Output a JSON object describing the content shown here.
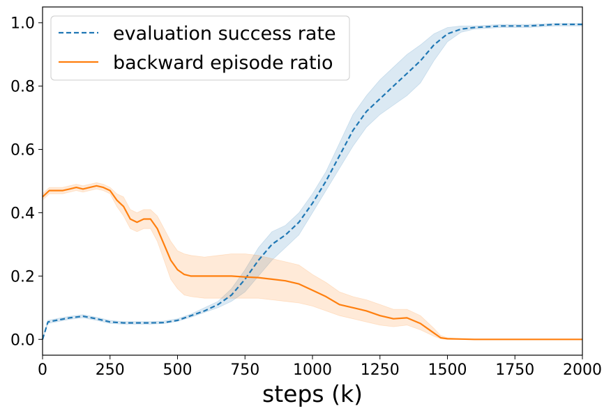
{
  "chart_data": {
    "type": "line",
    "title": "",
    "xlabel": "steps (k)",
    "ylabel": "",
    "xlim": [
      0,
      2000
    ],
    "ylim": [
      -0.05,
      1.05
    ],
    "xticks": [
      0,
      250,
      500,
      750,
      1000,
      1250,
      1500,
      1750,
      2000
    ],
    "xtick_labels": [
      "0",
      "250",
      "500",
      "750",
      "1000",
      "1250",
      "1500",
      "1750",
      "2000"
    ],
    "yticks": [
      0.0,
      0.2,
      0.4,
      0.6,
      0.8,
      1.0
    ],
    "ytick_labels": [
      "0.0",
      "0.2",
      "0.4",
      "0.6",
      "0.8",
      "1.0"
    ],
    "grid": false,
    "legend_position": "top-left",
    "series": [
      {
        "name": "evaluation success rate",
        "color": "#1f77b4",
        "style": "dashed",
        "x": [
          0,
          20,
          50,
          100,
          150,
          200,
          250,
          300,
          350,
          400,
          450,
          500,
          550,
          600,
          650,
          700,
          750,
          800,
          850,
          900,
          950,
          1000,
          1050,
          1100,
          1150,
          1200,
          1250,
          1300,
          1350,
          1400,
          1450,
          1500,
          1550,
          1600,
          1700,
          1800,
          1900,
          2000
        ],
        "y": [
          0.0,
          0.055,
          0.06,
          0.068,
          0.073,
          0.065,
          0.055,
          0.052,
          0.052,
          0.052,
          0.053,
          0.06,
          0.075,
          0.09,
          0.11,
          0.14,
          0.19,
          0.25,
          0.3,
          0.33,
          0.37,
          0.43,
          0.5,
          0.58,
          0.66,
          0.72,
          0.76,
          0.8,
          0.84,
          0.88,
          0.93,
          0.965,
          0.98,
          0.985,
          0.99,
          0.99,
          0.995,
          0.995
        ],
        "lower": [
          0.0,
          0.05,
          0.055,
          0.063,
          0.068,
          0.06,
          0.05,
          0.048,
          0.048,
          0.048,
          0.05,
          0.057,
          0.07,
          0.085,
          0.1,
          0.12,
          0.15,
          0.2,
          0.25,
          0.29,
          0.33,
          0.4,
          0.47,
          0.54,
          0.61,
          0.67,
          0.71,
          0.74,
          0.77,
          0.81,
          0.88,
          0.94,
          0.97,
          0.98,
          0.985,
          0.985,
          0.99,
          0.99
        ],
        "upper": [
          0.0,
          0.06,
          0.065,
          0.073,
          0.078,
          0.07,
          0.06,
          0.056,
          0.056,
          0.056,
          0.058,
          0.065,
          0.08,
          0.1,
          0.12,
          0.16,
          0.22,
          0.29,
          0.34,
          0.36,
          0.4,
          0.46,
          0.53,
          0.62,
          0.71,
          0.77,
          0.82,
          0.86,
          0.9,
          0.93,
          0.965,
          0.985,
          0.99,
          0.99,
          0.995,
          0.995,
          0.998,
          0.998
        ]
      },
      {
        "name": "backward episode ratio",
        "color": "#ff7f0e",
        "style": "solid",
        "x": [
          0,
          25,
          50,
          75,
          100,
          125,
          150,
          175,
          200,
          225,
          250,
          275,
          300,
          325,
          350,
          375,
          400,
          425,
          450,
          475,
          500,
          525,
          550,
          600,
          650,
          700,
          750,
          800,
          850,
          900,
          950,
          1000,
          1050,
          1100,
          1150,
          1200,
          1250,
          1300,
          1350,
          1400,
          1450,
          1475,
          1500,
          1550,
          1600,
          1700,
          1800,
          1900,
          2000
        ],
        "y": [
          0.45,
          0.47,
          0.47,
          0.47,
          0.475,
          0.48,
          0.475,
          0.48,
          0.485,
          0.48,
          0.47,
          0.44,
          0.42,
          0.38,
          0.37,
          0.38,
          0.38,
          0.35,
          0.3,
          0.25,
          0.22,
          0.205,
          0.2,
          0.2,
          0.2,
          0.2,
          0.197,
          0.195,
          0.19,
          0.185,
          0.175,
          0.155,
          0.135,
          0.11,
          0.1,
          0.09,
          0.075,
          0.065,
          0.068,
          0.05,
          0.02,
          0.005,
          0.002,
          0.001,
          0.0,
          0.0,
          0.0,
          0.0,
          0.0
        ],
        "lower": [
          0.44,
          0.46,
          0.46,
          0.46,
          0.465,
          0.47,
          0.465,
          0.47,
          0.475,
          0.47,
          0.46,
          0.42,
          0.39,
          0.35,
          0.34,
          0.35,
          0.35,
          0.31,
          0.25,
          0.19,
          0.16,
          0.14,
          0.135,
          0.13,
          0.13,
          0.13,
          0.13,
          0.13,
          0.125,
          0.12,
          0.115,
          0.105,
          0.09,
          0.075,
          0.065,
          0.055,
          0.045,
          0.04,
          0.045,
          0.03,
          0.01,
          0.002,
          0.0,
          0.0,
          0.0,
          0.0,
          0.0,
          0.0,
          0.0
        ],
        "upper": [
          0.46,
          0.48,
          0.48,
          0.48,
          0.485,
          0.49,
          0.485,
          0.49,
          0.495,
          0.49,
          0.48,
          0.46,
          0.45,
          0.41,
          0.4,
          0.41,
          0.41,
          0.39,
          0.35,
          0.31,
          0.28,
          0.27,
          0.265,
          0.26,
          0.265,
          0.27,
          0.27,
          0.265,
          0.255,
          0.245,
          0.235,
          0.205,
          0.18,
          0.15,
          0.135,
          0.125,
          0.11,
          0.095,
          0.095,
          0.075,
          0.035,
          0.012,
          0.005,
          0.002,
          0.001,
          0.001,
          0.001,
          0.001,
          0.001
        ]
      }
    ]
  }
}
